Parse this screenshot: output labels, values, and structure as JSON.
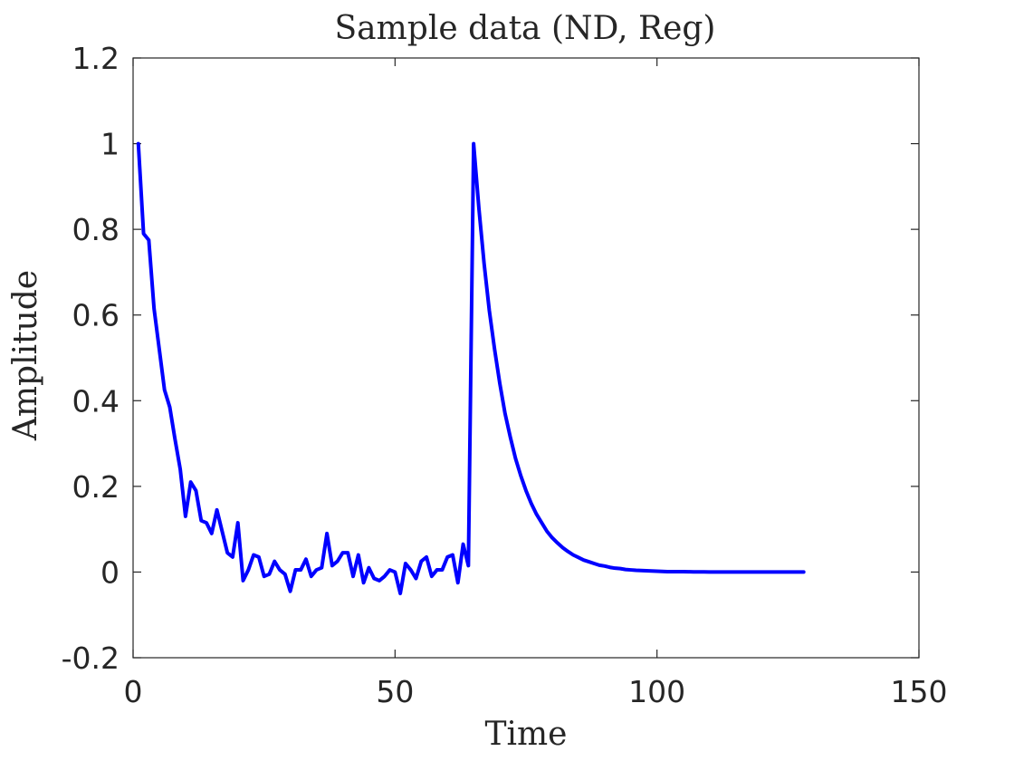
{
  "chart_data": {
    "type": "line",
    "title": "Sample data (ND, Reg)",
    "xlabel": "Time",
    "ylabel": "Amplitude",
    "xlim": [
      0,
      150
    ],
    "ylim": [
      -0.2,
      1.2
    ],
    "xticks": [
      0,
      50,
      100,
      150
    ],
    "xtick_labels": [
      "0",
      "50",
      "100",
      "150"
    ],
    "yticks": [
      -0.2,
      0,
      0.2,
      0.4,
      0.6,
      0.8,
      1,
      1.2
    ],
    "ytick_labels": [
      "-0.2",
      "0",
      "0.2",
      "0.4",
      "0.6",
      "0.8",
      "1",
      "1.2"
    ],
    "grid": false,
    "legend": "none",
    "series": [
      {
        "color": "#0000ff",
        "x": [
          1,
          2,
          3,
          4,
          5,
          6,
          7,
          8,
          9,
          10,
          11,
          12,
          13,
          14,
          15,
          16,
          17,
          18,
          19,
          20,
          21,
          22,
          23,
          24,
          25,
          26,
          27,
          28,
          29,
          30,
          31,
          32,
          33,
          34,
          35,
          36,
          37,
          38,
          39,
          40,
          41,
          42,
          43,
          44,
          45,
          46,
          47,
          48,
          49,
          50,
          51,
          52,
          53,
          54,
          55,
          56,
          57,
          58,
          59,
          60,
          61,
          62,
          63,
          64,
          65,
          66,
          67,
          68,
          69,
          70,
          71,
          72,
          73,
          74,
          75,
          76,
          77,
          78,
          79,
          80,
          81,
          82,
          83,
          84,
          85,
          86,
          87,
          88,
          89,
          90,
          91,
          92,
          93,
          94,
          95,
          96,
          97,
          98,
          99,
          100,
          101,
          102,
          103,
          104,
          105,
          106,
          107,
          108,
          109,
          110,
          111,
          112,
          113,
          114,
          115,
          116,
          117,
          118,
          119,
          120,
          121,
          122,
          123,
          124,
          125,
          126,
          127,
          128
        ],
        "y": [
          1.0,
          0.79,
          0.775,
          0.615,
          0.52,
          0.425,
          0.385,
          0.31,
          0.24,
          0.13,
          0.21,
          0.19,
          0.12,
          0.115,
          0.09,
          0.145,
          0.095,
          0.045,
          0.035,
          0.115,
          -0.02,
          0.005,
          0.04,
          0.035,
          -0.01,
          -0.005,
          0.025,
          0.005,
          -0.005,
          -0.045,
          0.005,
          0.005,
          0.03,
          -0.01,
          0.005,
          0.01,
          0.09,
          0.015,
          0.025,
          0.045,
          0.045,
          -0.01,
          0.04,
          -0.025,
          0.01,
          -0.015,
          -0.02,
          -0.01,
          0.005,
          0.0,
          -0.05,
          0.02,
          0.005,
          -0.015,
          0.025,
          0.035,
          -0.01,
          0.005,
          0.005,
          0.035,
          0.04,
          -0.025,
          0.065,
          0.015,
          1.0,
          0.85,
          0.72,
          0.61,
          0.52,
          0.44,
          0.37,
          0.315,
          0.265,
          0.225,
          0.19,
          0.16,
          0.135,
          0.115,
          0.095,
          0.08,
          0.068,
          0.057,
          0.048,
          0.04,
          0.034,
          0.028,
          0.024,
          0.02,
          0.016,
          0.014,
          0.011,
          0.009,
          0.008,
          0.006,
          0.005,
          0.004,
          0.0035,
          0.003,
          0.0025,
          0.002,
          0.0015,
          0.001,
          0.001,
          0.001,
          0.0008,
          0.0006,
          0.0005,
          0.0004,
          0.0003,
          0.0002,
          0.0002,
          0.0,
          0.0,
          0.0,
          0.0,
          0.0,
          0.0,
          0.0,
          0.0,
          0.0,
          0.0,
          0.0,
          0.0,
          0.0,
          0.0,
          0.0,
          0.0,
          0.0
        ]
      }
    ]
  }
}
